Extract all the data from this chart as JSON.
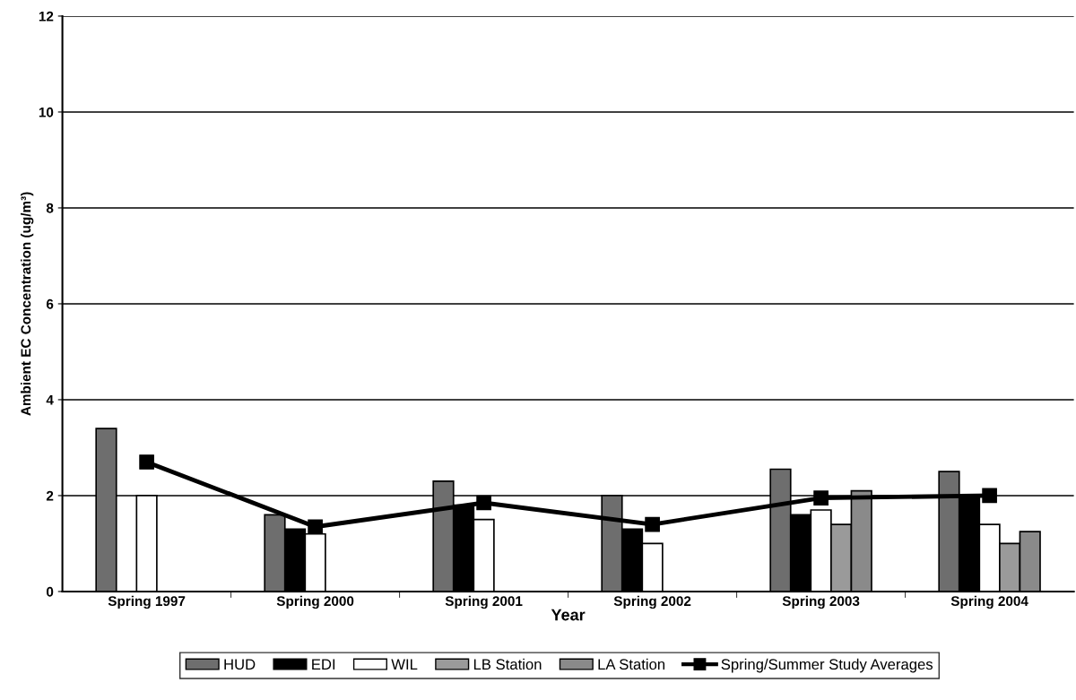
{
  "chart_data": {
    "type": "bar",
    "xlabel": "Year",
    "ylabel": "Ambient EC Concentration (ug/m³)",
    "categories": [
      "Spring 1997",
      "Spring 2000",
      "Spring 2001",
      "Spring 2002",
      "Spring 2003",
      "Spring 2004"
    ],
    "series": [
      {
        "name": "HUD",
        "color": "#6e6e6e",
        "values": [
          3.4,
          1.6,
          2.3,
          2.0,
          2.55,
          2.5
        ]
      },
      {
        "name": "EDI",
        "color": "#000000",
        "values": [
          null,
          1.3,
          1.8,
          1.3,
          1.6,
          2.0
        ]
      },
      {
        "name": "WIL",
        "color": "#ffffff",
        "values": [
          2.0,
          1.2,
          1.5,
          1.0,
          1.7,
          1.4
        ]
      },
      {
        "name": "LB Station",
        "color": "#9a9a9a",
        "values": [
          null,
          null,
          null,
          null,
          1.4,
          1.0
        ]
      },
      {
        "name": "LA Station",
        "color": "#8a8a8a",
        "values": [
          null,
          null,
          null,
          null,
          2.1,
          1.25
        ]
      },
      {
        "name": "Spring/Summer Study Averages",
        "type": "line",
        "color": "#000000",
        "marker": "square",
        "values": [
          2.7,
          1.35,
          1.85,
          1.4,
          1.95,
          2.0
        ]
      }
    ],
    "ylim": [
      0,
      12
    ],
    "yticks": [
      0,
      2,
      4,
      6,
      8,
      10,
      12
    ],
    "grid": "y",
    "legend": "bottom"
  }
}
